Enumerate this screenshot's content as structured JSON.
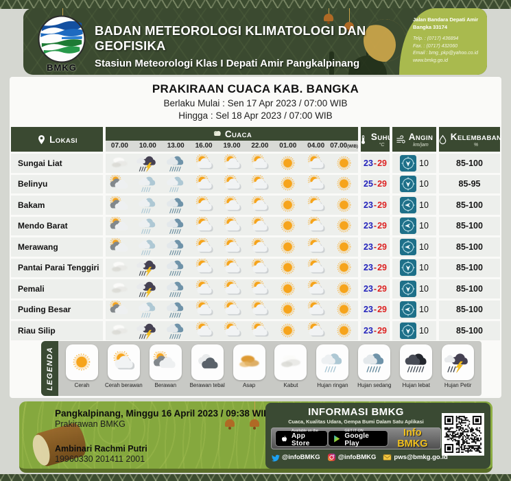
{
  "header": {
    "org_name": "BADAN METEOROLOGI KLIMATOLOGI DAN GEOFISIKA",
    "station_name": "Stasiun Meteorologi Klas I Depati Amir Pangkalpinang",
    "logo_label": "BMKG",
    "address_line1": "Jalan Bandara Depati Amir",
    "address_line2": "Bangka 33174",
    "telp": "Telp.   : (0717) 436894",
    "fax": "Fax.   : (0717) 432060",
    "email": "Email : bmg_pkp@yahoo.co.id",
    "website": "www.bmkg.go.id"
  },
  "title": {
    "main": "PRAKIRAAN CUACA KAB. BANGKA",
    "valid_from": "Berlaku Mulai : Sen 17 Apr 2023 / 07:00 WIB",
    "valid_to": "Hingga : Sel 18 Apr 2023 / 07:00 WIB"
  },
  "table": {
    "columns": {
      "lokasi": "LOKASI",
      "cuaca": "CUACA",
      "suhu": "SUHU",
      "suhu_unit": "°C",
      "angin": "ANGIN",
      "angin_unit": "km/jam",
      "kelembaban": "KELEMBABAN",
      "kelembaban_unit": "%"
    },
    "times": [
      "07.00",
      "10.00",
      "13.00",
      "16.00",
      "19.00",
      "22.00",
      "01.00",
      "04.00",
      "07.00"
    ],
    "time_suffix": "(WIB)",
    "rows": [
      {
        "lokasi": "Sungai Liat",
        "icons": [
          "kabut",
          "hujan-petir",
          "hujan-sedang",
          "cerah-berawan",
          "cerah-berawan",
          "cerah-berawan",
          "cerah",
          "cerah-berawan",
          "cerah"
        ],
        "suhu_min": "23",
        "suhu_max": "29",
        "angin": "10",
        "arah": "down",
        "kelembaban": "85-100"
      },
      {
        "lokasi": "Belinyu",
        "icons": [
          "berawan",
          "hujan-ringan",
          "hujan-ringan",
          "cerah-berawan",
          "cerah-berawan",
          "cerah-berawan",
          "cerah",
          "cerah-berawan",
          "cerah"
        ],
        "suhu_min": "25",
        "suhu_max": "29",
        "angin": "10",
        "arah": "down",
        "kelembaban": "85-95"
      },
      {
        "lokasi": "Bakam",
        "icons": [
          "berawan",
          "hujan-ringan",
          "hujan-sedang",
          "cerah-berawan",
          "cerah-berawan",
          "cerah-berawan",
          "cerah",
          "cerah-berawan",
          "cerah"
        ],
        "suhu_min": "23",
        "suhu_max": "29",
        "angin": "10",
        "arah": "left",
        "kelembaban": "85-100"
      },
      {
        "lokasi": "Mendo Barat",
        "icons": [
          "berawan",
          "hujan-ringan",
          "hujan-sedang",
          "cerah-berawan",
          "cerah-berawan",
          "cerah-berawan",
          "cerah",
          "cerah-berawan",
          "cerah"
        ],
        "suhu_min": "23",
        "suhu_max": "29",
        "angin": "10",
        "arah": "left",
        "kelembaban": "85-100"
      },
      {
        "lokasi": "Merawang",
        "icons": [
          "berawan",
          "hujan-ringan",
          "hujan-sedang",
          "cerah-berawan",
          "cerah-berawan",
          "cerah-berawan",
          "cerah",
          "cerah-berawan",
          "cerah"
        ],
        "suhu_min": "23",
        "suhu_max": "29",
        "angin": "10",
        "arah": "left",
        "kelembaban": "85-100"
      },
      {
        "lokasi": "Pantai Parai Tenggiri",
        "icons": [
          "kabut",
          "hujan-petir",
          "hujan-sedang",
          "cerah-berawan",
          "cerah-berawan",
          "cerah-berawan",
          "cerah",
          "cerah-berawan",
          "cerah"
        ],
        "suhu_min": "23",
        "suhu_max": "29",
        "angin": "10",
        "arah": "down",
        "kelembaban": "85-100"
      },
      {
        "lokasi": "Pemali",
        "icons": [
          "kabut",
          "hujan-petir",
          "hujan-sedang",
          "cerah-berawan",
          "cerah-berawan",
          "cerah-berawan",
          "cerah",
          "cerah-berawan",
          "cerah"
        ],
        "suhu_min": "23",
        "suhu_max": "29",
        "angin": "10",
        "arah": "down",
        "kelembaban": "85-100"
      },
      {
        "lokasi": "Puding Besar",
        "icons": [
          "berawan",
          "hujan-ringan",
          "hujan-sedang",
          "cerah-berawan",
          "cerah-berawan",
          "cerah-berawan",
          "cerah",
          "cerah-berawan",
          "cerah"
        ],
        "suhu_min": "23",
        "suhu_max": "29",
        "angin": "10",
        "arah": "left",
        "kelembaban": "85-100"
      },
      {
        "lokasi": "Riau Silip",
        "icons": [
          "kabut",
          "hujan-petir",
          "hujan-sedang",
          "cerah-berawan",
          "cerah-berawan",
          "cerah-berawan",
          "cerah",
          "cerah-berawan",
          "cerah"
        ],
        "suhu_min": "23",
        "suhu_max": "29",
        "angin": "10",
        "arah": "down",
        "kelembaban": "85-100"
      }
    ]
  },
  "legend": {
    "label": "LEGENDA",
    "items": [
      {
        "type": "cerah",
        "label": "Cerah"
      },
      {
        "type": "cerah-berawan",
        "label": "Cerah berawan"
      },
      {
        "type": "berawan",
        "label": "Berawan"
      },
      {
        "type": "berawan-tebal",
        "label": "Berawan tebal"
      },
      {
        "type": "asap",
        "label": "Asap"
      },
      {
        "type": "kabut",
        "label": "Kabut"
      },
      {
        "type": "hujan-ringan",
        "label": "Hujan ringan"
      },
      {
        "type": "hujan-sedang",
        "label": "Hujan sedang"
      },
      {
        "type": "hujan-lebat",
        "label": "Hujan lebat"
      },
      {
        "type": "hujan-petir",
        "label": "Hujan Petir"
      }
    ]
  },
  "footer": {
    "left": {
      "line1": "Pangkalpinang, Minggu 16 April 2023 / 09:38 WIB",
      "line2": "Prakirawan BMKG",
      "name": "Ambinari Rachmi Putri",
      "nip": "19960330 201411 2001"
    },
    "info": {
      "title": "INFORMASI BMKG",
      "subtitle": "Cuaca, Kualitas Udara, Gempa Bumi Dalam Satu Aplikasi",
      "appstore_small": "Available on the",
      "appstore_big": "App Store",
      "gplay_small": "GET IT ON",
      "gplay_big": "Google Play",
      "app_name": "Info BMKG",
      "twitter": "@infoBMKG",
      "instagram": "@infoBMKG",
      "email": "pws@bmkg.go.id"
    }
  },
  "icons": {
    "lokasi": "map-pin-icon",
    "cuaca": "cloud-icon",
    "suhu": "thermometer-icon",
    "angin": "wind-icon",
    "kelembaban": "droplet-icon",
    "wind_cells": "compass-arrow-icon",
    "social": [
      "twitter-icon",
      "instagram-icon",
      "email-icon"
    ],
    "stores": [
      "apple-icon",
      "google-play-icon"
    ],
    "qr": "qr-code"
  },
  "colors": {
    "header_green": "#3b4a30",
    "olive": "#a9ba4e",
    "footer_green": "#85a83e",
    "panel_green": "#3a4a33",
    "wind_teal": "#1e7089",
    "temp_min_blue": "#2222bb",
    "temp_max_red": "#dd2222",
    "accent_yellow": "#f2c11d"
  }
}
